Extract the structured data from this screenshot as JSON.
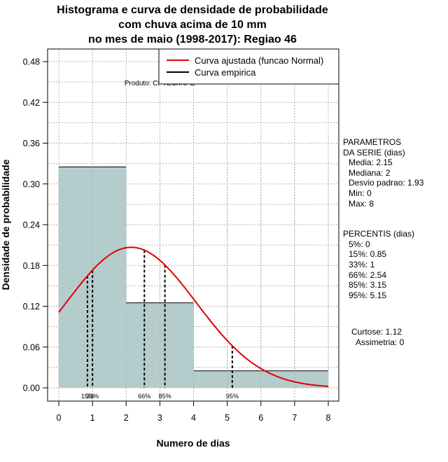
{
  "chart_data": {
    "type": "bar",
    "title_lines": [
      "Histograma e curva de densidade de probabilidade",
      "com chuva acima de 10 mm",
      "no mes de maio (1998-2017): Regiao 46"
    ],
    "xlabel": "Numero de dias",
    "ylabel": "Densidade de probabilidade",
    "xlim": [
      0,
      8
    ],
    "ylim": [
      0,
      0.48
    ],
    "xticks": [
      0,
      1,
      2,
      3,
      4,
      5,
      6,
      7,
      8
    ],
    "yticks": [
      "0.00",
      "0.06",
      "0.12",
      "0.18",
      "0.24",
      "0.30",
      "0.36",
      "0.42",
      "0.48"
    ],
    "grid": true,
    "bins": [
      {
        "from": 0,
        "to": 2,
        "density": 0.325
      },
      {
        "from": 2,
        "to": 4,
        "density": 0.125
      },
      {
        "from": 4,
        "to": 8,
        "density": 0.025
      }
    ],
    "fitted_curve": {
      "name": "Curva ajustada (funcao Normal)",
      "color": "#e00000",
      "mean": 2.15,
      "sd": 1.93
    },
    "empirical_curve": {
      "name": "Curva empirica",
      "color": "#000000"
    },
    "percentile_lines": [
      {
        "label": "15%",
        "x": 0.85
      },
      {
        "label": "33%",
        "x": 1
      },
      {
        "label": "66%",
        "x": 2.54
      },
      {
        "label": "85%",
        "x": 3.15
      },
      {
        "label": "95%",
        "x": 5.15
      }
    ],
    "annotation": "Produto: CPTEC/INPE",
    "legend_position": "top-right",
    "bar_color": "#b5cccc"
  },
  "side_panel": {
    "parametros_title_1": "PARAMETROS",
    "parametros_title_2": "DA SERIE (dias)",
    "media": "Media: 2.15",
    "mediana": "Mediana: 2",
    "desvio": "Desvio padrao: 1.93",
    "min": "Min: 0",
    "max": "Max: 8",
    "percentis_title": "PERCENTIS (dias)",
    "p5": "5%: 0",
    "p15": "15%: 0.85",
    "p33": "33%: 1",
    "p66": "66%: 2.54",
    "p85": "85%: 3.15",
    "p95": "95%: 5.15",
    "curtose": "Curtose: 1.12",
    "assimetria": "Assimetria: 0"
  }
}
